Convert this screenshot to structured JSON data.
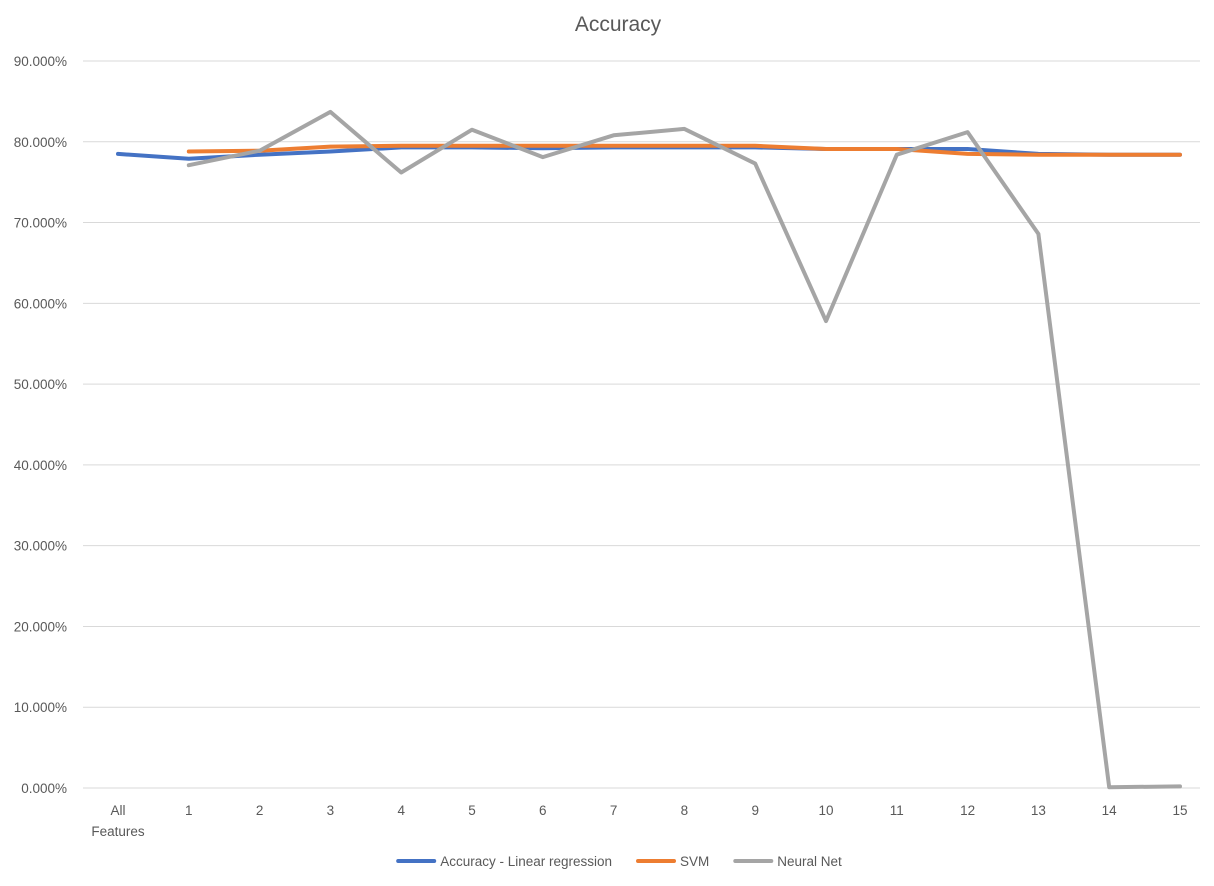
{
  "chart_data": {
    "type": "line",
    "title": "Accuracy",
    "xlabel": "",
    "ylabel": "",
    "categories": [
      [
        "All",
        "Features"
      ],
      [
        "1"
      ],
      [
        "2"
      ],
      [
        "3"
      ],
      [
        "4"
      ],
      [
        "5"
      ],
      [
        "6"
      ],
      [
        "7"
      ],
      [
        "8"
      ],
      [
        "9"
      ],
      [
        "10"
      ],
      [
        "11"
      ],
      [
        "12"
      ],
      [
        "13"
      ],
      [
        "14"
      ],
      [
        "15"
      ]
    ],
    "ylim": [
      0,
      0.9
    ],
    "yticks": [
      {
        "value": 0.0,
        "label": "0.000%"
      },
      {
        "value": 0.1,
        "label": "10.000%"
      },
      {
        "value": 0.2,
        "label": "20.000%"
      },
      {
        "value": 0.3,
        "label": "30.000%"
      },
      {
        "value": 0.4,
        "label": "40.000%"
      },
      {
        "value": 0.5,
        "label": "50.000%"
      },
      {
        "value": 0.6,
        "label": "60.000%"
      },
      {
        "value": 0.7,
        "label": "70.000%"
      },
      {
        "value": 0.8,
        "label": "80.000%"
      },
      {
        "value": 0.9,
        "label": "90.000%"
      }
    ],
    "grid": true,
    "legend_position": "bottom",
    "series": [
      {
        "name": "Accuracy - Linear regression",
        "color": "#4472c4",
        "values": [
          0.785,
          0.779,
          0.784,
          0.788,
          0.793,
          0.793,
          0.792,
          0.793,
          0.793,
          0.793,
          0.791,
          0.791,
          0.791,
          0.785,
          0.784,
          0.784
        ]
      },
      {
        "name": "SVM",
        "color": "#ed7d31",
        "values": [
          null,
          0.788,
          0.789,
          0.794,
          0.795,
          0.795,
          0.795,
          0.795,
          0.795,
          0.795,
          0.791,
          0.791,
          0.785,
          0.784,
          0.784,
          0.784
        ]
      },
      {
        "name": "Neural Net",
        "color": "#a5a5a5",
        "values": [
          null,
          0.771,
          0.789,
          0.837,
          0.762,
          0.815,
          0.781,
          0.808,
          0.816,
          0.773,
          0.578,
          0.784,
          0.812,
          0.686,
          0.001,
          0.002
        ]
      }
    ]
  }
}
